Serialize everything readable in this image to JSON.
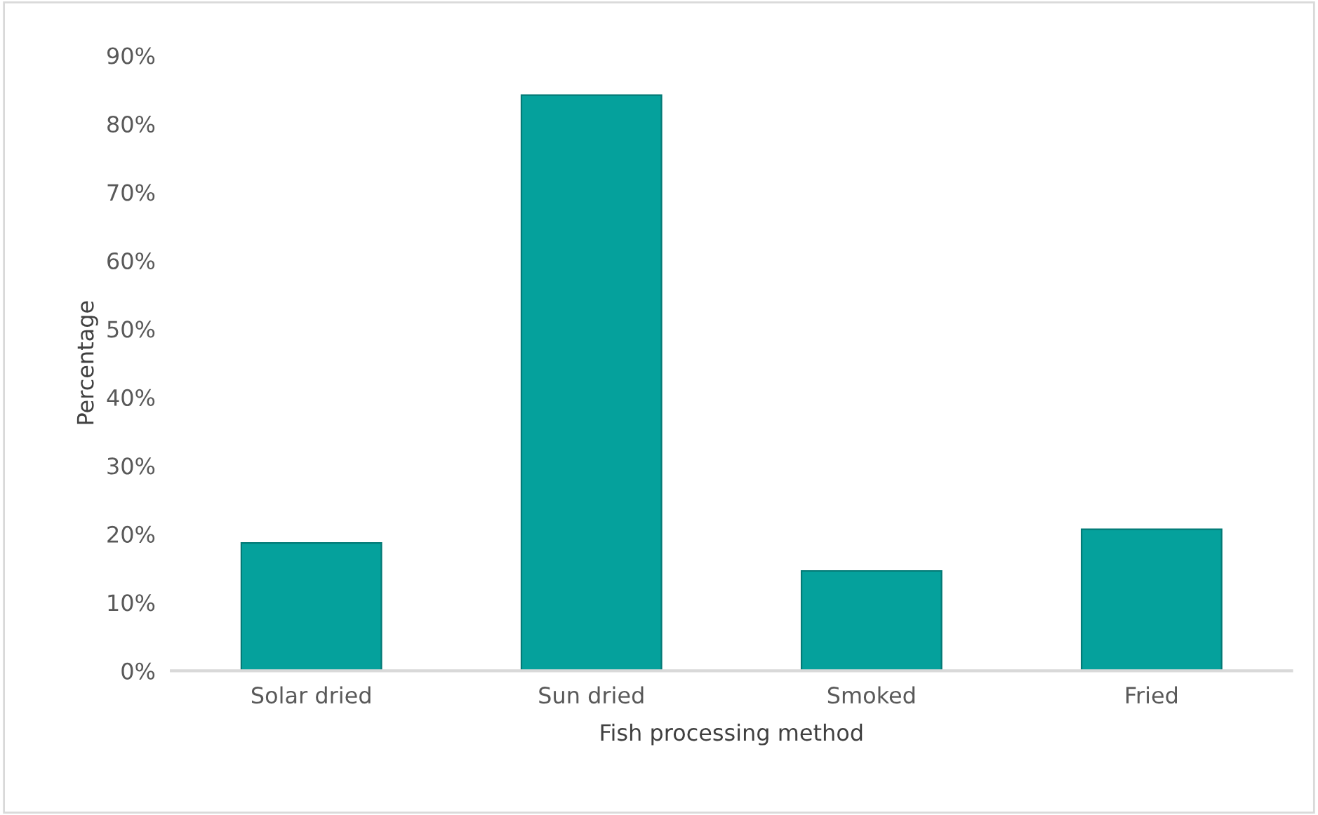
{
  "chart_data": {
    "type": "bar",
    "xlabel": "Fish processing method",
    "ylabel": "Percentage",
    "categories": [
      "Solar dried",
      "Sun dried",
      "Smoked",
      "Fried"
    ],
    "values": [
      18.7,
      84.2,
      14.6,
      20.7
    ],
    "color": "#05a19c",
    "ylim": [
      0,
      90
    ],
    "yticks": [
      {
        "value": 0,
        "label": "0%"
      },
      {
        "value": 10,
        "label": "10%"
      },
      {
        "value": 20,
        "label": "20%"
      },
      {
        "value": 30,
        "label": "30%"
      },
      {
        "value": 40,
        "label": "40%"
      },
      {
        "value": 50,
        "label": "50%"
      },
      {
        "value": 60,
        "label": "60%"
      },
      {
        "value": 70,
        "label": "70%"
      },
      {
        "value": 80,
        "label": "80%"
      },
      {
        "value": 90,
        "label": "90%"
      }
    ],
    "grid": false,
    "legend": false
  }
}
